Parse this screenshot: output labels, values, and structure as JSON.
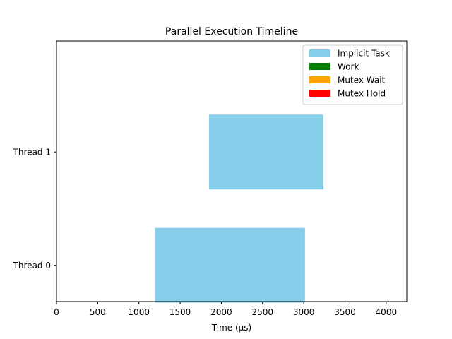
{
  "chart_data": {
    "type": "bar",
    "orientation": "horizontal",
    "title": "Parallel Execution Timeline",
    "xlabel": "Time (µs)",
    "ylabel": "",
    "xlim": [
      0,
      4250
    ],
    "xticks": [
      0,
      500,
      1000,
      1500,
      2000,
      2500,
      3000,
      3500,
      4000
    ],
    "ylim": [
      -0.32,
      1.98
    ],
    "categories": [
      "Thread 0",
      "Thread 1"
    ],
    "bar_height": 0.66,
    "grid": false,
    "legend_position": "top-right",
    "legend": [
      {
        "label": "Implicit Task",
        "color": "#87CEEB"
      },
      {
        "label": "Work",
        "color": "#008000"
      },
      {
        "label": "Mutex Wait",
        "color": "#FFA500"
      },
      {
        "label": "Mutex Hold",
        "color": "#FF0000"
      }
    ],
    "segments": [
      {
        "thread": "Thread 0",
        "type": "Implicit Task",
        "start": 1195,
        "end": 3015,
        "color": "#87CEEB"
      },
      {
        "thread": "Thread 1",
        "type": "Implicit Task",
        "start": 1850,
        "end": 3240,
        "color": "#87CEEB"
      }
    ]
  }
}
